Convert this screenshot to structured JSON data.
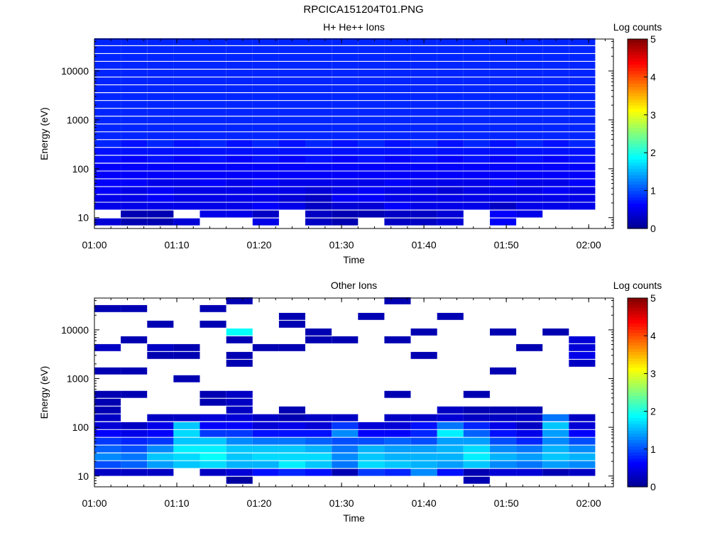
{
  "figure_title": "RPCICA151204T01.PNG",
  "colors": {
    "colormap": [
      "#00008f",
      "#0000ff",
      "#0080ff",
      "#00ffff",
      "#80ff80",
      "#ffff00",
      "#ff8000",
      "#ff0000",
      "#800000"
    ]
  },
  "chart_data": [
    {
      "type": "heatmap",
      "title": "H+ He++ Ions",
      "xlabel": "Time",
      "ylabel": "Energy (eV)",
      "colorbar_label": "Log counts",
      "colorbar_ticks": [
        "0",
        "1",
        "2",
        "3",
        "4",
        "5"
      ],
      "colorbar_range": [
        0,
        5
      ],
      "xlim": [
        "01:00",
        "02:03"
      ],
      "ylim": [
        6,
        45000
      ],
      "yscale": "log",
      "x_ticks": [
        "01:00",
        "01:10",
        "01:20",
        "01:30",
        "01:40",
        "01:50",
        "02:00"
      ],
      "y_ticks": [
        "10",
        "100",
        "1000",
        "10000"
      ],
      "time_bins_minutes": [
        0,
        3.2,
        6.4,
        9.6,
        12.8,
        16.0,
        19.2,
        22.4,
        25.6,
        28.8,
        32.0,
        35.2,
        38.4,
        41.6,
        44.8,
        48.0,
        51.2,
        54.4,
        57.6,
        60.8
      ],
      "energy_bins_eV": [
        8.2,
        11.9,
        17.2,
        24.8,
        35.9,
        51.9,
        75.0,
        108,
        157,
        227,
        328,
        474,
        685,
        990,
        1432,
        2070,
        2993,
        4327,
        6256,
        9045,
        13076,
        18905,
        27331,
        39513
      ],
      "counts_log": [
        [
          0.4,
          0.2,
          0.2,
          0.4,
          0,
          0,
          0.5,
          0,
          0.3,
          0.2,
          0,
          0.3,
          0.3,
          0.4,
          0,
          0.6,
          0,
          0,
          0
        ],
        [
          0,
          0.2,
          0.2,
          0,
          0.5,
          0.5,
          0.3,
          0,
          0.3,
          0.2,
          0.2,
          0.3,
          0.3,
          0.4,
          0,
          0.6,
          0.5,
          0,
          0
        ],
        [
          0.5,
          0.5,
          0.5,
          0.5,
          0.5,
          0.5,
          0.6,
          0.5,
          0.3,
          0.4,
          0.4,
          0.6,
          0.5,
          0.5,
          0.5,
          0.3,
          0.5,
          0.5,
          0.5
        ],
        [
          0.5,
          0.5,
          0.6,
          0.5,
          0.5,
          0.5,
          0.5,
          0.4,
          0.3,
          0.6,
          0.6,
          0.5,
          0.5,
          0.5,
          0.5,
          0.5,
          0.5,
          0.5,
          0.5
        ],
        [
          0.6,
          0.5,
          0.6,
          0.5,
          0.5,
          0.5,
          0.5,
          0.5,
          0.4,
          0.5,
          0.6,
          0.5,
          0.5,
          0.4,
          0.5,
          0.5,
          0.5,
          0.6,
          0.5
        ],
        [
          0.6,
          0.6,
          0.5,
          0.5,
          0.6,
          0.5,
          0.6,
          0.5,
          0.5,
          0.5,
          0.5,
          0.6,
          0.5,
          0.5,
          0.5,
          0.6,
          0.5,
          0.5,
          0.6
        ],
        [
          0.6,
          0.6,
          0.6,
          0.6,
          0.6,
          0.6,
          0.6,
          0.6,
          0.6,
          0.6,
          0.6,
          0.6,
          0.6,
          0.6,
          0.6,
          0.6,
          0.6,
          0.6,
          0.6
        ],
        [
          0.6,
          0.6,
          0.6,
          0.6,
          0.6,
          0.6,
          0.6,
          0.6,
          0.6,
          0.6,
          0.6,
          0.6,
          0.6,
          0.6,
          0.6,
          0.6,
          0.6,
          0.6,
          0.6
        ],
        [
          0.7,
          0.6,
          0.7,
          0.6,
          0.7,
          0.6,
          0.7,
          0.6,
          0.7,
          0.6,
          0.7,
          0.6,
          0.7,
          0.6,
          0.7,
          0.6,
          0.7,
          0.6,
          0.7
        ],
        [
          0.7,
          0.7,
          0.7,
          0.7,
          0.7,
          0.7,
          0.7,
          0.7,
          0.7,
          0.7,
          0.7,
          0.7,
          0.7,
          0.7,
          0.7,
          0.7,
          0.7,
          0.7,
          0.7
        ],
        [
          0.8,
          0.7,
          0.8,
          0.7,
          0.8,
          0.7,
          0.8,
          0.7,
          0.8,
          0.7,
          0.8,
          0.7,
          0.8,
          0.7,
          0.8,
          0.7,
          0.8,
          0.7,
          0.8
        ],
        [
          0.8,
          0.8,
          0.8,
          0.8,
          0.8,
          0.8,
          0.8,
          0.8,
          0.8,
          0.8,
          0.8,
          0.8,
          0.8,
          0.8,
          0.8,
          0.8,
          0.8,
          0.8,
          0.8
        ],
        [
          0.8,
          0.8,
          0.8,
          0.8,
          0.8,
          0.8,
          0.8,
          0.8,
          0.8,
          0.8,
          0.8,
          0.8,
          0.8,
          0.8,
          0.8,
          0.8,
          0.8,
          0.8,
          0.8
        ],
        [
          0.8,
          0.8,
          0.8,
          0.8,
          0.8,
          0.8,
          0.8,
          0.8,
          0.8,
          0.8,
          0.8,
          0.8,
          0.8,
          0.8,
          0.8,
          0.8,
          0.8,
          0.8,
          0.8
        ],
        [
          0.8,
          0.8,
          0.8,
          0.8,
          0.8,
          0.8,
          0.8,
          0.8,
          0.8,
          0.8,
          0.8,
          0.8,
          0.8,
          0.8,
          0.8,
          0.8,
          0.8,
          0.8,
          0.8
        ],
        [
          0.8,
          0.8,
          0.8,
          0.8,
          0.8,
          0.8,
          0.8,
          0.8,
          0.8,
          0.8,
          0.8,
          0.8,
          0.8,
          0.8,
          0.8,
          0.8,
          0.8,
          0.8,
          0.8
        ],
        [
          0.8,
          0.8,
          0.8,
          0.8,
          0.8,
          0.8,
          0.8,
          0.8,
          0.8,
          0.8,
          0.8,
          0.8,
          0.8,
          0.8,
          0.8,
          0.8,
          0.8,
          0.8,
          0.8
        ],
        [
          0.8,
          0.8,
          0.8,
          0.8,
          0.8,
          0.8,
          0.8,
          0.8,
          0.8,
          0.8,
          0.8,
          0.8,
          0.8,
          0.8,
          0.8,
          0.8,
          0.8,
          0.8,
          0.8
        ],
        [
          0.8,
          0.8,
          0.8,
          0.8,
          0.8,
          0.8,
          0.8,
          0.8,
          0.8,
          0.8,
          0.8,
          0.8,
          0.8,
          0.8,
          0.8,
          0.8,
          0.8,
          0.8,
          0.8
        ],
        [
          0.8,
          0.8,
          0.8,
          0.8,
          0.8,
          0.8,
          0.8,
          0.8,
          0.8,
          0.8,
          0.8,
          0.8,
          0.8,
          0.8,
          0.8,
          0.8,
          0.8,
          0.8,
          0.8
        ],
        [
          0.8,
          0.8,
          0.8,
          0.8,
          0.8,
          0.8,
          0.8,
          0.8,
          0.8,
          0.8,
          0.8,
          0.8,
          0.8,
          0.8,
          0.8,
          0.8,
          0.8,
          0.8,
          0.8
        ],
        [
          0.8,
          0.8,
          0.8,
          0.8,
          0.8,
          0.8,
          0.8,
          0.8,
          0.8,
          0.8,
          0.8,
          0.8,
          0.8,
          0.8,
          0.8,
          0.8,
          0.8,
          0.8,
          0.8
        ],
        [
          0.8,
          0.8,
          0.8,
          0.8,
          0.8,
          0.8,
          0.8,
          0.8,
          0.8,
          0.8,
          0.8,
          0.8,
          0.8,
          0.8,
          0.8,
          0.8,
          0.8,
          0.8,
          0.8
        ],
        [
          0.8,
          0.8,
          0.8,
          0.8,
          0.8,
          0.8,
          0.8,
          0.8,
          0.8,
          0.8,
          0.8,
          0.8,
          0.8,
          0.8,
          0.8,
          0.8,
          0.8,
          0.8,
          0.8
        ]
      ]
    },
    {
      "type": "heatmap",
      "title": "Other Ions",
      "xlabel": "Time",
      "ylabel": "Energy (eV)",
      "colorbar_label": "Log counts",
      "colorbar_ticks": [
        "0",
        "1",
        "2",
        "3",
        "4",
        "5"
      ],
      "colorbar_range": [
        0,
        5
      ],
      "xlim": [
        "01:00",
        "02:03"
      ],
      "ylim": [
        6,
        45000
      ],
      "yscale": "log",
      "x_ticks": [
        "01:00",
        "01:10",
        "01:20",
        "01:30",
        "01:40",
        "01:50",
        "02:00"
      ],
      "y_ticks": [
        "10",
        "100",
        "1000",
        "10000"
      ],
      "time_bins_minutes": [
        0,
        3.2,
        6.4,
        9.6,
        12.8,
        16.0,
        19.2,
        22.4,
        25.6,
        28.8,
        32.0,
        35.2,
        38.4,
        41.6,
        44.8,
        48.0,
        51.2,
        54.4,
        57.6,
        60.8
      ],
      "energy_bins_eV": [
        8.2,
        11.9,
        17.2,
        24.8,
        35.9,
        51.9,
        75.0,
        108,
        157,
        227,
        328,
        474,
        685,
        990,
        1432,
        2070,
        2993,
        4327,
        6256,
        9045,
        13076,
        18905,
        27331,
        39513
      ],
      "counts_log": [
        [
          0,
          0,
          0,
          0,
          0,
          0.1,
          0,
          0,
          0,
          0,
          0,
          0,
          0,
          0,
          0.2,
          0,
          0,
          0,
          0
        ],
        [
          0.3,
          0.3,
          0.3,
          0,
          0.3,
          0.4,
          0.7,
          0.8,
          0.7,
          0.2,
          0.9,
          0.8,
          1.3,
          0.7,
          0.2,
          0.4,
          0.4,
          0.2,
          0.3
        ],
        [
          1.0,
          1.1,
          1.4,
          1.6,
          1.7,
          1.5,
          1.5,
          1.8,
          1.6,
          1.2,
          1.7,
          1.6,
          1.5,
          1.4,
          1.6,
          1.3,
          1.2,
          1.4,
          1.3
        ],
        [
          1.3,
          1.2,
          1.6,
          1.7,
          1.9,
          1.6,
          1.7,
          1.7,
          1.7,
          1.3,
          1.6,
          1.5,
          1.5,
          1.5,
          1.8,
          1.5,
          1.4,
          1.6,
          1.5
        ],
        [
          1.1,
          1.0,
          1.3,
          1.8,
          1.8,
          1.6,
          1.6,
          1.6,
          1.5,
          1.2,
          1.5,
          1.4,
          1.4,
          1.5,
          1.7,
          1.3,
          1.2,
          1.5,
          1.3
        ],
        [
          0.9,
          0.8,
          0.9,
          1.6,
          1.6,
          1.3,
          1.2,
          1.2,
          1.1,
          1.0,
          1.0,
          1.1,
          1.0,
          1.4,
          1.4,
          1.0,
          0.8,
          1.3,
          1.0
        ],
        [
          0.6,
          0.5,
          0.6,
          1.7,
          0.9,
          0.9,
          0.7,
          0.7,
          0.7,
          1.3,
          0.6,
          0.6,
          0.8,
          1.8,
          1.1,
          0.7,
          0.5,
          1.4,
          0.6
        ],
        [
          0.4,
          0.3,
          0.5,
          1.6,
          0.6,
          0.6,
          0.4,
          0.5,
          0.4,
          0.9,
          0.4,
          0.4,
          0.7,
          1.2,
          0.8,
          0.5,
          0.3,
          1.6,
          0.4
        ],
        [
          0.3,
          0,
          0.3,
          0.3,
          0.4,
          0.4,
          0.3,
          0.2,
          0.3,
          0.3,
          0,
          0.3,
          0.3,
          0.4,
          0.3,
          0.3,
          0.3,
          1.2,
          0.3
        ],
        [
          0.2,
          0,
          0,
          0,
          0,
          0.3,
          0,
          0.2,
          0,
          0,
          0,
          0,
          0,
          0.3,
          0.2,
          0.2,
          0.2,
          0,
          0
        ],
        [
          0.2,
          0,
          0,
          0,
          0.2,
          0.3,
          0,
          0,
          0,
          0,
          0,
          0,
          0,
          0,
          0,
          0,
          0,
          0,
          0
        ],
        [
          0.2,
          0.2,
          0,
          0,
          0.2,
          0.3,
          0,
          0,
          0,
          0,
          0,
          0.2,
          0,
          0,
          0.2,
          0,
          0,
          0,
          0
        ],
        [
          0,
          0,
          0,
          0,
          0,
          0,
          0,
          0,
          0,
          0,
          0,
          0,
          0,
          0,
          0,
          0,
          0,
          0,
          0
        ],
        [
          0,
          0,
          0,
          0.2,
          0,
          0,
          0,
          0,
          0,
          0,
          0,
          0,
          0,
          0,
          0,
          0,
          0,
          0,
          0
        ],
        [
          0.2,
          0.2,
          0,
          0,
          0,
          0,
          0,
          0,
          0,
          0,
          0,
          0,
          0,
          0,
          0,
          0.2,
          0,
          0,
          0
        ],
        [
          0,
          0,
          0,
          0,
          0,
          0.2,
          0,
          0,
          0,
          0,
          0,
          0,
          0,
          0,
          0,
          0,
          0,
          0,
          0.3
        ],
        [
          0,
          0,
          0.2,
          0.2,
          0,
          0.2,
          0,
          0,
          0,
          0,
          0,
          0,
          0.2,
          0,
          0,
          0,
          0,
          0,
          0.5
        ],
        [
          0.3,
          0,
          0.3,
          0.2,
          0,
          0,
          0.2,
          0.2,
          0,
          0,
          0,
          0,
          0,
          0,
          0,
          0,
          0.2,
          0,
          0.4
        ],
        [
          0,
          0.2,
          0,
          0,
          0,
          0.2,
          0,
          0,
          0.2,
          0.2,
          0,
          0.2,
          0,
          0,
          0,
          0,
          0,
          0,
          0.4
        ],
        [
          0,
          0,
          0,
          0,
          0,
          1.9,
          0,
          0,
          0.2,
          0,
          0,
          0,
          0.2,
          0,
          0,
          0.2,
          0,
          0.2,
          0
        ],
        [
          0,
          0,
          0.2,
          0,
          0.2,
          0,
          0,
          0.2,
          0,
          0,
          0,
          0,
          0,
          0,
          0,
          0,
          0,
          0,
          0
        ],
        [
          0,
          0,
          0,
          0,
          0,
          0,
          0,
          0.2,
          0,
          0,
          0.2,
          0,
          0,
          0.2,
          0,
          0,
          0,
          0,
          0
        ],
        [
          0.2,
          0.2,
          0,
          0,
          0.2,
          0,
          0,
          0,
          0,
          0,
          0,
          0,
          0,
          0,
          0,
          0,
          0,
          0,
          0
        ],
        [
          0,
          0,
          0,
          0,
          0,
          0.2,
          0,
          0,
          0,
          0,
          0,
          0.2,
          0,
          0,
          0,
          0,
          0,
          0,
          0
        ]
      ]
    }
  ]
}
